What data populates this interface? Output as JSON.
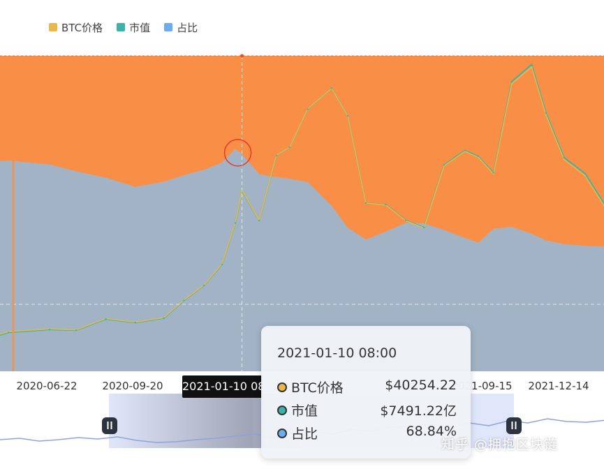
{
  "chart_data": {
    "type": "area",
    "legend": [
      {
        "name": "BTC价格",
        "color": "#e8b84a"
      },
      {
        "name": "市值",
        "color": "#3ab3a8"
      },
      {
        "name": "占比",
        "color": "#6aaef0"
      }
    ],
    "legend_position": "top-left",
    "x_tick_labels": [
      "2020-06-22",
      "2020-09-20",
      "2021-01-10 08:00",
      "2021-09-15",
      "2021-12-14"
    ],
    "x": [
      "2020-04-10",
      "2020-05-10",
      "2020-06-22",
      "2020-07-20",
      "2020-08-20",
      "2020-09-20",
      "2020-10-20",
      "2020-11-10",
      "2020-12-01",
      "2020-12-20",
      "2021-01-03",
      "2021-01-10",
      "2021-01-28",
      "2021-02-15",
      "2021-03-01",
      "2021-03-20",
      "2021-04-14",
      "2021-05-01",
      "2021-05-20",
      "2021-06-10",
      "2021-07-01",
      "2021-07-20",
      "2021-08-10",
      "2021-09-01",
      "2021-09-15",
      "2021-10-01",
      "2021-10-20",
      "2021-11-10",
      "2021-11-25",
      "2021-12-14",
      "2022-01-05",
      "2022-01-25"
    ],
    "series": [
      {
        "name": "BTC价格",
        "values": [
          6900,
          8800,
          9400,
          9200,
          11700,
          10900,
          11900,
          15800,
          19100,
          23800,
          33000,
          40254,
          33500,
          47900,
          49700,
          58200,
          62800,
          56700,
          37300,
          36900,
          33400,
          31800,
          45600,
          48800,
          47500,
          43800,
          63800,
          67500,
          56900,
          47000,
          43400,
          36800
        ]
      },
      {
        "name": "市值",
        "values": [
          1260,
          1610,
          1730,
          1700,
          2160,
          2020,
          2200,
          2930,
          3550,
          4420,
          6140,
          7491.22,
          6240,
          8930,
          9270,
          10850,
          11720,
          10580,
          6960,
          6900,
          6250,
          5950,
          8540,
          9140,
          8900,
          8220,
          11990,
          12700,
          10700,
          8850,
          8190,
          6950
        ]
      },
      {
        "name": "占比",
        "values": [
          66.5,
          66.8,
          65.6,
          63.4,
          61.4,
          58.5,
          60.1,
          62.2,
          63.9,
          66.2,
          70.5,
          68.84,
          62.5,
          61.6,
          61.0,
          60.0,
          52.5,
          45.5,
          41.8,
          44.3,
          47.1,
          46.9,
          44.8,
          42.3,
          40.8,
          45.2,
          45.8,
          43.6,
          41.5,
          40.3,
          39.8,
          39.6
        ]
      }
    ],
    "ylim_ratio": [
      0,
      100
    ],
    "crosshair_x": "2021-01-10"
  },
  "tooltip": {
    "date": "2021-01-10 08:00",
    "rows": [
      {
        "name": "BTC价格",
        "value": "$40254.22",
        "color": "#e8b84a"
      },
      {
        "name": "市值",
        "value": "$7491.22亿",
        "color": "#3ab3a8"
      },
      {
        "name": "占比",
        "value": "68.84%",
        "color": "#6aaef0"
      }
    ]
  },
  "watermark": "知乎 @拥抱区块链"
}
